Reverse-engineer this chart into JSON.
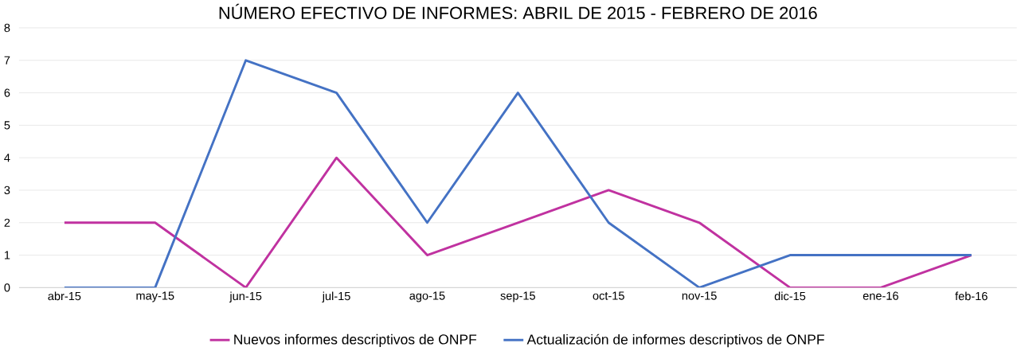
{
  "chart_data": {
    "type": "line",
    "title": "NÚMERO EFECTIVO DE INFORMES: ABRIL DE 2015 - FEBRERO DE 2016",
    "categories": [
      "abr-15",
      "may-15",
      "jun-15",
      "jul-15",
      "ago-15",
      "sep-15",
      "oct-15",
      "nov-15",
      "dic-15",
      "ene-16",
      "feb-16"
    ],
    "series": [
      {
        "name": "Nuevos informes descriptivos de ONPF",
        "color": "#c032a0",
        "values": [
          2,
          2,
          0,
          4,
          1,
          2,
          3,
          2,
          0,
          0,
          1
        ]
      },
      {
        "name": "Actualización de informes descriptivos de ONPF",
        "color": "#4472c4",
        "values": [
          0,
          0,
          7,
          6,
          2,
          6,
          2,
          0,
          1,
          1,
          1
        ]
      }
    ],
    "ylim": [
      0,
      8
    ],
    "yticks": [
      0,
      1,
      2,
      3,
      4,
      5,
      6,
      7,
      8
    ],
    "grid": "y",
    "legend": "bottom",
    "marker": "none",
    "line_style": "solid"
  }
}
